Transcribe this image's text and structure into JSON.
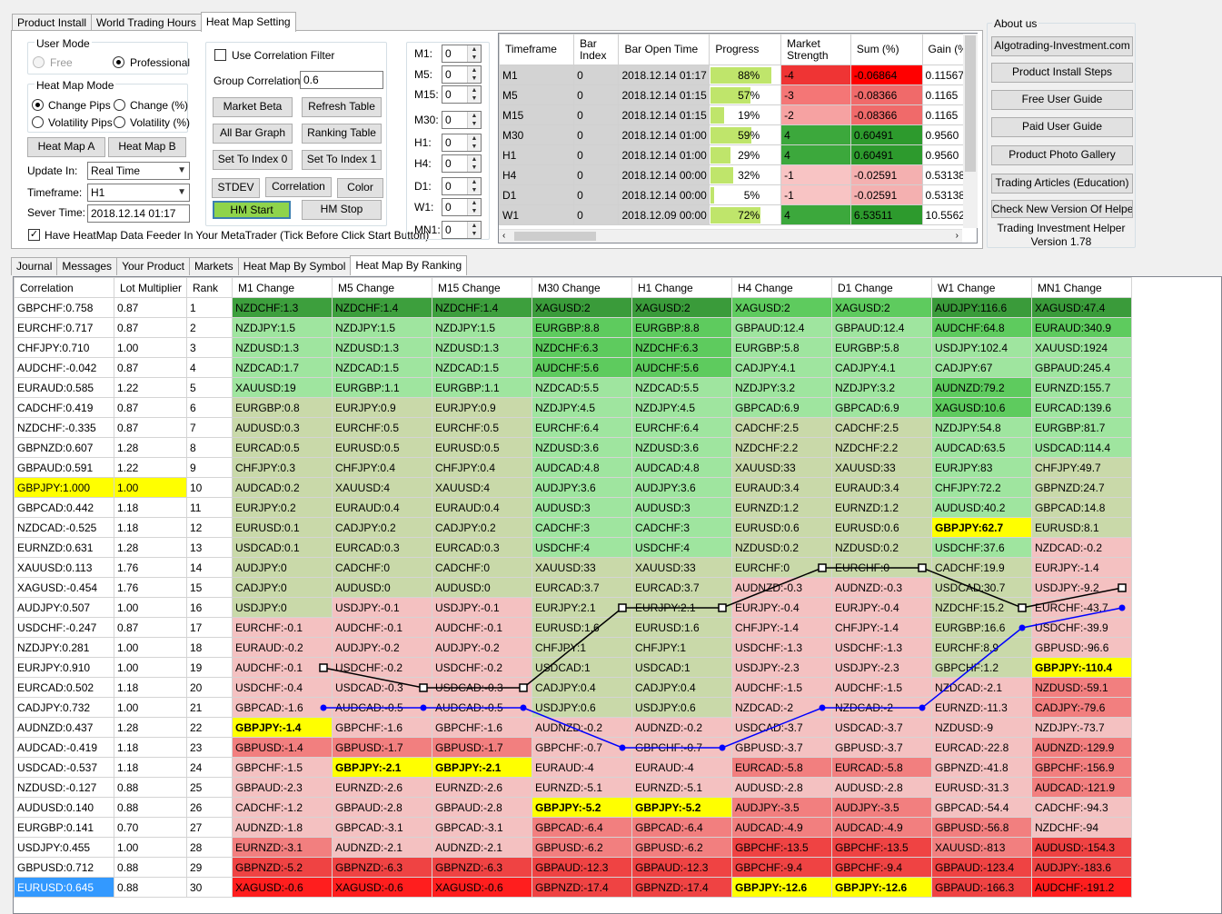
{
  "top_tabs": [
    {
      "label": "Product Install"
    },
    {
      "label": "World Trading Hours"
    },
    {
      "label": "Heat Map Setting",
      "active": true
    }
  ],
  "user_mode": {
    "title": "User Mode",
    "free": "Free",
    "professional": "Professional"
  },
  "heat_map_mode": {
    "title": "Heat Map Mode",
    "change_pips": "Change Pips",
    "change_pct": "Change (%)",
    "volatility_pips": "Volatility Pips",
    "volatility_pct": "Volatility (%)"
  },
  "buttons": {
    "heat_map_a": "Heat Map A",
    "heat_map_b": "Heat Map B",
    "market_beta": "Market Beta",
    "refresh_table": "Refresh Table",
    "all_bar_graph": "All Bar Graph",
    "ranking_table": "Ranking Table",
    "set_index_0": "Set To Index 0",
    "set_index_1": "Set To Index 1",
    "stdev": "STDEV",
    "correlation": "Correlation",
    "color": "Color",
    "hm_start": "HM Start",
    "hm_stop": "HM Stop"
  },
  "form": {
    "update_in_label": "Update In:",
    "update_in_value": "Real Time",
    "timeframe_label": "Timeframe:",
    "timeframe_value": "H1",
    "sever_time_label": "Sever Time:",
    "sever_time_value": "2018.12.14 01:17",
    "use_corr_filter": "Use Correlation Filter",
    "group_corr_label": "Group Correlation:",
    "group_corr_value": "0.6",
    "feeder_label": "Have HeatMap Data Feeder In Your MetaTrader (Tick Before Click Start Button)"
  },
  "shifts": [
    {
      "label": "M1:",
      "value": "0"
    },
    {
      "label": "M5:",
      "value": "0"
    },
    {
      "label": "M15:",
      "value": "0"
    },
    {
      "label": "M30:",
      "value": "0"
    },
    {
      "label": "H1:",
      "value": "0"
    },
    {
      "label": "H4:",
      "value": "0"
    },
    {
      "label": "D1:",
      "value": "0"
    },
    {
      "label": "W1:",
      "value": "0"
    },
    {
      "label": "MN1:",
      "value": "0"
    }
  ],
  "tf_table": {
    "headers": [
      "Timeframe",
      "Bar Index",
      "Bar Open Time",
      "Progress",
      "Market Strength",
      "Sum (%)",
      "Gain (%"
    ],
    "rows": [
      {
        "tf": "M1",
        "idx": "0",
        "time": "2018.12.14 01:17",
        "progress": "88%",
        "pv": 0.88,
        "strength": "-4",
        "sc": "#ef3434",
        "sum": "-0.06864",
        "mc": "#ff0000",
        "gain": "0.11567"
      },
      {
        "tf": "M5",
        "idx": "0",
        "time": "2018.12.14 01:15",
        "progress": "57%",
        "pv": 0.57,
        "strength": "-3",
        "sc": "#f47676",
        "sum": "-0.08366",
        "mc": "#f06a6a",
        "gain": "0.1165"
      },
      {
        "tf": "M15",
        "idx": "0",
        "time": "2018.12.14 01:15",
        "progress": "19%",
        "pv": 0.19,
        "strength": "-2",
        "sc": "#f6a2a2",
        "sum": "-0.08366",
        "mc": "#f06a6a",
        "gain": "0.1165"
      },
      {
        "tf": "M30",
        "idx": "0",
        "time": "2018.12.14 01:00",
        "progress": "59%",
        "pv": 0.59,
        "strength": "4",
        "sc": "#3ca83c",
        "sum": "0.60491",
        "mc": "#2d9a2d",
        "gain": "0.9560"
      },
      {
        "tf": "H1",
        "idx": "0",
        "time": "2018.12.14 01:00",
        "progress": "29%",
        "pv": 0.29,
        "strength": "4",
        "sc": "#3ca83c",
        "sum": "0.60491",
        "mc": "#2d9a2d",
        "gain": "0.9560"
      },
      {
        "tf": "H4",
        "idx": "0",
        "time": "2018.12.14 00:00",
        "progress": "32%",
        "pv": 0.32,
        "strength": "-1",
        "sc": "#f8c4c4",
        "sum": "-0.02591",
        "mc": "#f4b0b0",
        "gain": "0.53138"
      },
      {
        "tf": "D1",
        "idx": "0",
        "time": "2018.12.14 00:00",
        "progress": "5%",
        "pv": 0.05,
        "strength": "-1",
        "sc": "#f8c4c4",
        "sum": "-0.02591",
        "mc": "#f4b0b0",
        "gain": "0.53138"
      },
      {
        "tf": "W1",
        "idx": "0",
        "time": "2018.12.09 00:00",
        "progress": "72%",
        "pv": 0.72,
        "strength": "4",
        "sc": "#3ca83c",
        "sum": "6.53511",
        "mc": "#2d9a2d",
        "gain": "10.5562"
      }
    ]
  },
  "about": {
    "title": "About us",
    "links": [
      "Algotrading-Investment.com",
      "Product Install Steps",
      "Free User Guide",
      "Paid User Guide",
      "Product Photo Gallery",
      "Trading Articles (Education)",
      "Check New Version Of Helper"
    ],
    "app_name": "Trading Investment Helper",
    "version": "Version 1.78"
  },
  "bottom_tabs": [
    {
      "label": "Journal"
    },
    {
      "label": "Messages"
    },
    {
      "label": "Your Product"
    },
    {
      "label": "Markets"
    },
    {
      "label": "Heat Map By Symbol"
    },
    {
      "label": "Heat Map By Ranking",
      "active": true
    }
  ],
  "ranking": {
    "headers": [
      "Correlation",
      "Lot Multiplier",
      "Rank",
      "M1 Change",
      "M5 Change",
      "M15 Change",
      "M30 Change",
      "H1 Change",
      "H4 Change",
      "D1 Change",
      "W1 Change",
      "MN1 Change"
    ],
    "corr": [
      [
        "GBPCHF:0.758",
        "0.87"
      ],
      [
        "EURCHF:0.717",
        "0.87"
      ],
      [
        "CHFJPY:0.710",
        "1.00"
      ],
      [
        "AUDCHF:-0.042",
        "0.87"
      ],
      [
        "EURAUD:0.585",
        "1.22"
      ],
      [
        "CADCHF:0.419",
        "0.87"
      ],
      [
        "NZDCHF:-0.335",
        "0.87"
      ],
      [
        "GBPNZD:0.607",
        "1.28"
      ],
      [
        "GBPAUD:0.591",
        "1.22"
      ],
      [
        "GBPJPY:1.000",
        "1.00"
      ],
      [
        "GBPCAD:0.442",
        "1.18"
      ],
      [
        "NZDCAD:-0.525",
        "1.18"
      ],
      [
        "EURNZD:0.631",
        "1.28"
      ],
      [
        "XAUUSD:0.113",
        "1.76"
      ],
      [
        "XAGUSD:-0.454",
        "1.76"
      ],
      [
        "AUDJPY:0.507",
        "1.00"
      ],
      [
        "USDCHF:-0.247",
        "0.87"
      ],
      [
        "NZDJPY:0.281",
        "1.00"
      ],
      [
        "EURJPY:0.910",
        "1.00"
      ],
      [
        "EURCAD:0.502",
        "1.18"
      ],
      [
        "CADJPY:0.732",
        "1.00"
      ],
      [
        "AUDNZD:0.437",
        "1.28"
      ],
      [
        "AUDCAD:-0.419",
        "1.18"
      ],
      [
        "USDCAD:-0.537",
        "1.18"
      ],
      [
        "NZDUSD:-0.127",
        "0.88"
      ],
      [
        "AUDUSD:0.140",
        "0.88"
      ],
      [
        "EURGBP:0.141",
        "0.70"
      ],
      [
        "USDJPY:0.455",
        "1.00"
      ],
      [
        "GBPUSD:0.712",
        "0.88"
      ],
      [
        "EURUSD:0.645",
        "0.88"
      ]
    ],
    "cols": [
      [
        "NZDCHF:1.3",
        "NZDJPY:1.5",
        "NZDUSD:1.3",
        "NZDCAD:1.7",
        "XAUUSD:19",
        "EURGBP:0.8",
        "AUDUSD:0.3",
        "EURCAD:0.5",
        "CHFJPY:0.3",
        "AUDCAD:0.2",
        "EURJPY:0.2",
        "EURUSD:0.1",
        "USDCAD:0.1",
        "AUDJPY:0",
        "CADJPY:0",
        "USDJPY:0",
        "EURCHF:-0.1",
        "EURAUD:-0.2",
        "AUDCHF:-0.1",
        "USDCHF:-0.4",
        "GBPCAD:-1.6",
        "GBPJPY:-1.4",
        "GBPUSD:-1.4",
        "GBPCHF:-1.5",
        "GBPAUD:-2.3",
        "CADCHF:-1.2",
        "AUDNZD:-1.8",
        "EURNZD:-3.1",
        "GBPNZD:-5.2",
        "XAGUSD:-0.6"
      ],
      [
        "NZDCHF:1.4",
        "NZDJPY:1.5",
        "NZDUSD:1.3",
        "NZDCAD:1.5",
        "EURGBP:1.1",
        "EURJPY:0.9",
        "EURCHF:0.5",
        "EURUSD:0.5",
        "CHFJPY:0.4",
        "XAUUSD:4",
        "EURAUD:0.4",
        "CADJPY:0.2",
        "EURCAD:0.3",
        "CADCHF:0",
        "AUDUSD:0",
        "USDJPY:-0.1",
        "AUDCHF:-0.1",
        "AUDJPY:-0.2",
        "USDCHF:-0.2",
        "USDCAD:-0.3",
        "AUDCAD:-0.5",
        "GBPCHF:-1.6",
        "GBPUSD:-1.7",
        "GBPJPY:-2.1",
        "EURNZD:-2.6",
        "GBPAUD:-2.8",
        "GBPCAD:-3.1",
        "AUDNZD:-2.1",
        "GBPNZD:-6.3",
        "XAGUSD:-0.6"
      ],
      [
        "NZDCHF:1.4",
        "NZDJPY:1.5",
        "NZDUSD:1.3",
        "NZDCAD:1.5",
        "EURGBP:1.1",
        "EURJPY:0.9",
        "EURCHF:0.5",
        "EURUSD:0.5",
        "CHFJPY:0.4",
        "XAUUSD:4",
        "EURAUD:0.4",
        "CADJPY:0.2",
        "EURCAD:0.3",
        "CADCHF:0",
        "AUDUSD:0",
        "USDJPY:-0.1",
        "AUDCHF:-0.1",
        "AUDJPY:-0.2",
        "USDCHF:-0.2",
        "USDCAD:-0.3",
        "AUDCAD:-0.5",
        "GBPCHF:-1.6",
        "GBPUSD:-1.7",
        "GBPJPY:-2.1",
        "EURNZD:-2.6",
        "GBPAUD:-2.8",
        "GBPCAD:-3.1",
        "AUDNZD:-2.1",
        "GBPNZD:-6.3",
        "XAGUSD:-0.6"
      ],
      [
        "XAGUSD:2",
        "EURGBP:8.8",
        "NZDCHF:6.3",
        "AUDCHF:5.6",
        "NZDCAD:5.5",
        "NZDJPY:4.5",
        "EURCHF:6.4",
        "NZDUSD:3.6",
        "AUDCAD:4.8",
        "AUDJPY:3.6",
        "AUDUSD:3",
        "CADCHF:3",
        "USDCHF:4",
        "XAUUSD:33",
        "EURCAD:3.7",
        "EURJPY:2.1",
        "EURUSD:1.6",
        "CHFJPY:1",
        "USDCAD:1",
        "CADJPY:0.4",
        "USDJPY:0.6",
        "AUDNZD:-0.2",
        "GBPCHF:-0.7",
        "EURAUD:-4",
        "EURNZD:-5.1",
        "GBPJPY:-5.2",
        "GBPCAD:-6.4",
        "GBPUSD:-6.2",
        "GBPAUD:-12.3",
        "GBPNZD:-17.4"
      ],
      [
        "XAGUSD:2",
        "EURGBP:8.8",
        "NZDCHF:6.3",
        "AUDCHF:5.6",
        "NZDCAD:5.5",
        "NZDJPY:4.5",
        "EURCHF:6.4",
        "NZDUSD:3.6",
        "AUDCAD:4.8",
        "AUDJPY:3.6",
        "AUDUSD:3",
        "CADCHF:3",
        "USDCHF:4",
        "XAUUSD:33",
        "EURCAD:3.7",
        "EURJPY:2.1",
        "EURUSD:1.6",
        "CHFJPY:1",
        "USDCAD:1",
        "CADJPY:0.4",
        "USDJPY:0.6",
        "AUDNZD:-0.2",
        "GBPCHF:-0.7",
        "EURAUD:-4",
        "EURNZD:-5.1",
        "GBPJPY:-5.2",
        "GBPCAD:-6.4",
        "GBPUSD:-6.2",
        "GBPAUD:-12.3",
        "GBPNZD:-17.4"
      ],
      [
        "XAGUSD:2",
        "GBPAUD:12.4",
        "EURGBP:5.8",
        "CADJPY:4.1",
        "NZDJPY:3.2",
        "GBPCAD:6.9",
        "CADCHF:2.5",
        "NZDCHF:2.2",
        "XAUUSD:33",
        "EURAUD:3.4",
        "EURNZD:1.2",
        "EURUSD:0.6",
        "NZDUSD:0.2",
        "EURCHF:0",
        "AUDNZD:-0.3",
        "EURJPY:-0.4",
        "CHFJPY:-1.4",
        "USDCHF:-1.3",
        "USDJPY:-2.3",
        "AUDCHF:-1.5",
        "NZDCAD:-2",
        "USDCAD:-3.7",
        "GBPUSD:-3.7",
        "EURCAD:-5.8",
        "AUDUSD:-2.8",
        "AUDJPY:-3.5",
        "AUDCAD:-4.9",
        "GBPCHF:-13.5",
        "GBPCHF:-9.4",
        "GBPJPY:-12.6"
      ],
      [
        "XAGUSD:2",
        "GBPAUD:12.4",
        "EURGBP:5.8",
        "CADJPY:4.1",
        "NZDJPY:3.2",
        "GBPCAD:6.9",
        "CADCHF:2.5",
        "NZDCHF:2.2",
        "XAUUSD:33",
        "EURAUD:3.4",
        "EURNZD:1.2",
        "EURUSD:0.6",
        "NZDUSD:0.2",
        "EURCHF:0",
        "AUDNZD:-0.3",
        "EURJPY:-0.4",
        "CHFJPY:-1.4",
        "USDCHF:-1.3",
        "USDJPY:-2.3",
        "AUDCHF:-1.5",
        "NZDCAD:-2",
        "USDCAD:-3.7",
        "GBPUSD:-3.7",
        "EURCAD:-5.8",
        "AUDUSD:-2.8",
        "AUDJPY:-3.5",
        "AUDCAD:-4.9",
        "GBPCHF:-13.5",
        "GBPCHF:-9.4",
        "GBPJPY:-12.6"
      ],
      [
        "AUDJPY:116.6",
        "AUDCHF:64.8",
        "USDJPY:102.4",
        "CADJPY:67",
        "AUDNZD:79.2",
        "XAGUSD:10.6",
        "NZDJPY:54.8",
        "AUDCAD:63.5",
        "EURJPY:83",
        "CHFJPY:72.2",
        "AUDUSD:40.2",
        "GBPJPY:62.7",
        "USDCHF:37.6",
        "CADCHF:19.9",
        "USDCAD:30.7",
        "NZDCHF:15.2",
        "EURGBP:16.6",
        "EURCHF:8.9",
        "GBPCHF:1.2",
        "NZDCAD:-2.1",
        "EURNZD:-11.3",
        "NZDUSD:-9",
        "EURCAD:-22.8",
        "GBPNZD:-41.8",
        "EURUSD:-31.3",
        "GBPCAD:-54.4",
        "GBPUSD:-56.8",
        "XAUUSD:-813",
        "GBPAUD:-123.4",
        "GBPAUD:-166.3"
      ],
      [
        "XAGUSD:47.4",
        "EURAUD:340.9",
        "XAUUSD:1924",
        "GBPAUD:245.4",
        "EURNZD:155.7",
        "EURCAD:139.6",
        "EURGBP:81.7",
        "USDCAD:114.4",
        "CHFJPY:49.7",
        "GBPNZD:24.7",
        "GBPCAD:14.8",
        "EURUSD:8.1",
        "NZDCAD:-0.2",
        "EURJPY:-1.4",
        "USDJPY:-9.2",
        "EURCHF:-43.7",
        "USDCHF:-39.9",
        "GBPUSD:-96.6",
        "GBPJPY:-110.4",
        "NZDUSD:-59.1",
        "CADJPY:-79.6",
        "NZDJPY:-73.7",
        "AUDNZD:-129.9",
        "GBPCHF:-156.9",
        "AUDCAD:-121.9",
        "CADCHF:-94.3",
        "NZDCHF:-94",
        "AUDUSD:-154.3",
        "AUDJPY:-183.6",
        "AUDCHF:-191.2"
      ]
    ],
    "shades": [
      [
        0,
        1,
        1,
        1,
        1,
        2,
        2,
        2,
        2,
        2,
        2,
        2,
        2,
        2,
        2,
        2,
        3,
        3,
        3,
        3,
        3,
        3,
        4,
        3,
        3,
        3,
        3,
        4,
        5,
        6
      ],
      [
        0,
        1,
        1,
        1,
        1,
        2,
        2,
        2,
        2,
        2,
        2,
        2,
        2,
        2,
        2,
        3,
        3,
        3,
        3,
        3,
        3,
        3,
        4,
        4,
        3,
        3,
        3,
        3,
        5,
        6
      ],
      [
        0,
        1,
        1,
        1,
        1,
        2,
        2,
        2,
        2,
        2,
        2,
        2,
        2,
        2,
        2,
        3,
        3,
        3,
        3,
        3,
        3,
        3,
        4,
        4,
        3,
        3,
        3,
        3,
        5,
        6
      ],
      [
        7,
        8,
        8,
        8,
        1,
        1,
        1,
        1,
        1,
        1,
        1,
        1,
        1,
        2,
        2,
        2,
        2,
        2,
        2,
        2,
        2,
        3,
        3,
        3,
        3,
        3,
        4,
        4,
        5,
        5
      ],
      [
        7,
        8,
        8,
        8,
        1,
        1,
        1,
        1,
        1,
        1,
        1,
        1,
        1,
        2,
        2,
        2,
        2,
        2,
        2,
        2,
        2,
        3,
        3,
        3,
        3,
        3,
        4,
        4,
        5,
        5
      ],
      [
        8,
        1,
        1,
        1,
        1,
        1,
        2,
        2,
        2,
        2,
        2,
        2,
        2,
        2,
        3,
        3,
        3,
        3,
        3,
        3,
        3,
        3,
        3,
        4,
        3,
        4,
        4,
        5,
        5,
        5
      ],
      [
        8,
        1,
        1,
        1,
        1,
        1,
        2,
        2,
        2,
        2,
        2,
        2,
        2,
        2,
        3,
        3,
        3,
        3,
        3,
        3,
        3,
        3,
        3,
        4,
        3,
        4,
        4,
        5,
        5,
        5
      ],
      [
        7,
        8,
        1,
        1,
        8,
        8,
        1,
        1,
        1,
        1,
        1,
        1,
        1,
        2,
        2,
        2,
        2,
        2,
        2,
        3,
        3,
        3,
        3,
        3,
        3,
        3,
        4,
        4,
        5,
        5
      ],
      [
        7,
        8,
        1,
        1,
        1,
        1,
        1,
        1,
        2,
        2,
        2,
        2,
        3,
        3,
        3,
        3,
        3,
        3,
        3,
        4,
        4,
        3,
        4,
        4,
        4,
        3,
        3,
        5,
        5,
        6
      ]
    ],
    "highlights": [
      [
        9,
        21
      ],
      [
        9,
        23
      ],
      [
        9,
        23
      ],
      [
        9,
        25
      ],
      [
        9,
        25
      ],
      [
        9,
        29
      ],
      [
        9,
        29
      ],
      [
        9,
        11
      ],
      [
        9,
        18
      ]
    ],
    "shade_colors": [
      "#3d9f3d",
      "#9fe59f",
      "#c9d9a9",
      "#f4c1c1",
      "#f27f7f",
      "#ef4343",
      "#ff1e1e",
      "#3a9b3a",
      "#5ecb5e"
    ],
    "highlight_color": "#ffff00",
    "corr_highlight_row": 9,
    "last_row_select_color": "#3399ff",
    "line_black_ranks": [
      19,
      20,
      20,
      16,
      16,
      14,
      14,
      16,
      15
    ],
    "line_blue_ranks": [
      21,
      21,
      21,
      23,
      23,
      21,
      21,
      17,
      16
    ]
  }
}
